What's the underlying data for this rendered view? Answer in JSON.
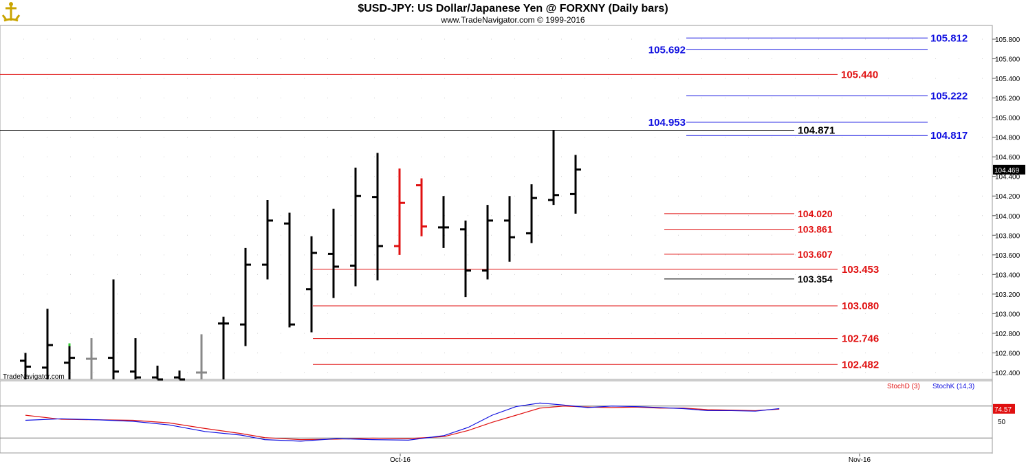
{
  "header": {
    "title": "$USD-JPY:  US Dollar/Japanese Yen @ FORXNY  (Daily bars)",
    "copyright": "www.TradeNavigator.com © 1999-2016",
    "watermark": "TradeNavigator.com"
  },
  "colors": {
    "blue": "#1010e0",
    "red": "#e01010",
    "black": "#000000",
    "grey": "#888888",
    "green": "#33cc33"
  },
  "chart_data": [
    {
      "type": "ohlc",
      "title": "$USD-JPY:  US Dollar/Japanese Yen @ FORXNY  (Daily bars)",
      "ylim": [
        102.33,
        105.92
      ],
      "y_ticks": [
        "105.800",
        "105.600",
        "105.400",
        "105.200",
        "105.000",
        "104.800",
        "104.600",
        "104.400",
        "104.200",
        "104.000",
        "103.800",
        "103.600",
        "103.400",
        "103.200",
        "103.000",
        "102.800",
        "102.600",
        "102.400"
      ],
      "x_ticks": [
        "Oct-16",
        "Nov-16"
      ],
      "last_price": "104.469",
      "bars": [
        {
          "o": 102.52,
          "h": 102.6,
          "l": 102.33,
          "c": 102.46,
          "color": "black"
        },
        {
          "o": 102.45,
          "h": 103.05,
          "l": 102.33,
          "c": 102.68,
          "color": "black"
        },
        {
          "o": 102.5,
          "h": 102.67,
          "l": 102.33,
          "c": 102.55,
          "color": "black",
          "top_tick": "green"
        },
        {
          "o": 102.54,
          "h": 102.75,
          "l": 102.33,
          "c": 102.54,
          "color": "grey"
        },
        {
          "o": 102.55,
          "h": 103.35,
          "l": 102.33,
          "c": 102.41,
          "color": "black"
        },
        {
          "o": 102.41,
          "h": 102.75,
          "l": 102.33,
          "c": 102.35,
          "color": "black"
        },
        {
          "o": 102.35,
          "h": 102.47,
          "l": 102.33,
          "c": 102.33,
          "color": "black"
        },
        {
          "o": 102.35,
          "h": 102.42,
          "l": 102.33,
          "c": 102.33,
          "color": "black"
        },
        {
          "o": 102.4,
          "h": 102.79,
          "l": 102.33,
          "c": 102.4,
          "color": "grey"
        },
        {
          "o": 102.9,
          "h": 102.97,
          "l": 102.33,
          "c": 102.9,
          "color": "black"
        },
        {
          "o": 102.89,
          "h": 103.67,
          "l": 102.67,
          "c": 103.5,
          "color": "black"
        },
        {
          "o": 103.5,
          "h": 104.16,
          "l": 103.35,
          "c": 103.95,
          "color": "black"
        },
        {
          "o": 103.92,
          "h": 104.03,
          "l": 102.86,
          "c": 102.89,
          "color": "black"
        },
        {
          "o": 103.25,
          "h": 103.79,
          "l": 102.81,
          "c": 103.62,
          "color": "black"
        },
        {
          "o": 103.61,
          "h": 104.07,
          "l": 103.16,
          "c": 103.48,
          "color": "black"
        },
        {
          "o": 103.49,
          "h": 104.49,
          "l": 103.28,
          "c": 104.2,
          "color": "black"
        },
        {
          "o": 104.19,
          "h": 104.64,
          "l": 103.34,
          "c": 103.69,
          "color": "black"
        },
        {
          "o": 103.69,
          "h": 104.48,
          "l": 103.6,
          "c": 104.13,
          "color": "red"
        },
        {
          "o": 104.31,
          "h": 104.38,
          "l": 103.79,
          "c": 103.89,
          "color": "red"
        },
        {
          "o": 103.88,
          "h": 104.2,
          "l": 103.67,
          "c": 103.88,
          "color": "black"
        },
        {
          "o": 103.86,
          "h": 103.95,
          "l": 103.17,
          "c": 103.44,
          "color": "black"
        },
        {
          "o": 103.44,
          "h": 104.11,
          "l": 103.35,
          "c": 103.95,
          "color": "black"
        },
        {
          "o": 103.95,
          "h": 104.2,
          "l": 103.53,
          "c": 103.78,
          "color": "black"
        },
        {
          "o": 103.82,
          "h": 104.32,
          "l": 103.72,
          "c": 104.18,
          "color": "black"
        },
        {
          "o": 104.16,
          "h": 104.87,
          "l": 104.11,
          "c": 104.21,
          "color": "black"
        },
        {
          "o": 104.22,
          "h": 104.62,
          "l": 104.02,
          "c": 104.47,
          "color": "black"
        }
      ],
      "levels": [
        {
          "value": 105.812,
          "label": "105.812",
          "color": "blue",
          "side": "right",
          "line": "short"
        },
        {
          "value": 105.692,
          "label": "105.692",
          "color": "blue",
          "side": "left",
          "line": "short"
        },
        {
          "value": 105.44,
          "label": "105.440",
          "color": "red",
          "side": "right",
          "line": "full"
        },
        {
          "value": 105.222,
          "label": "105.222",
          "color": "blue",
          "side": "right",
          "line": "short"
        },
        {
          "value": 104.953,
          "label": "104.953",
          "color": "blue",
          "side": "left",
          "line": "short"
        },
        {
          "value": 104.871,
          "label": "104.871",
          "color": "black",
          "side": "right",
          "line": "full"
        },
        {
          "value": 104.817,
          "label": "104.817",
          "color": "blue",
          "side": "right",
          "line": "short"
        },
        {
          "value": 104.02,
          "label": "104.020",
          "color": "red",
          "side": "right",
          "line": "seg"
        },
        {
          "value": 103.861,
          "label": "103.861",
          "color": "red",
          "side": "right",
          "line": "seg"
        },
        {
          "value": 103.607,
          "label": "103.607",
          "color": "red",
          "side": "right",
          "line": "seg"
        },
        {
          "value": 103.453,
          "label": "103.453",
          "color": "red",
          "side": "right",
          "line": "long"
        },
        {
          "value": 103.354,
          "label": "103.354",
          "color": "black",
          "side": "right",
          "line": "seg"
        },
        {
          "value": 103.08,
          "label": "103.080",
          "color": "red",
          "side": "right",
          "line": "long"
        },
        {
          "value": 102.746,
          "label": "102.746",
          "color": "red",
          "side": "right",
          "line": "long"
        },
        {
          "value": 102.482,
          "label": "102.482",
          "color": "red",
          "side": "right",
          "line": "long"
        }
      ]
    },
    {
      "type": "line",
      "legend": [
        "StochD (3)",
        "StochK (14,3)"
      ],
      "ylim": [
        0,
        100
      ],
      "y_ticks": [
        "50"
      ],
      "last_value": "74.57",
      "x": [
        1,
        4,
        7,
        10,
        13,
        16,
        19,
        21,
        24,
        27,
        30,
        33,
        36,
        38,
        40,
        42,
        44,
        46,
        48,
        50,
        52,
        54,
        56,
        58,
        60,
        62,
        64
      ],
      "series": [
        {
          "name": "StochD (3)",
          "color": "red",
          "values": [
            62,
            54,
            53,
            52,
            47,
            36,
            26,
            18,
            14,
            15,
            17,
            16,
            20,
            32,
            48,
            62,
            76,
            80,
            78,
            77,
            78,
            76,
            76,
            73,
            72,
            71,
            74
          ]
        },
        {
          "name": "StochK (14,3)",
          "color": "blue",
          "values": [
            52,
            55,
            53,
            50,
            43,
            30,
            23,
            14,
            11,
            16,
            14,
            13,
            22,
            38,
            62,
            79,
            86,
            82,
            77,
            80,
            79,
            77,
            75,
            71,
            71,
            70,
            75
          ]
        }
      ]
    }
  ]
}
